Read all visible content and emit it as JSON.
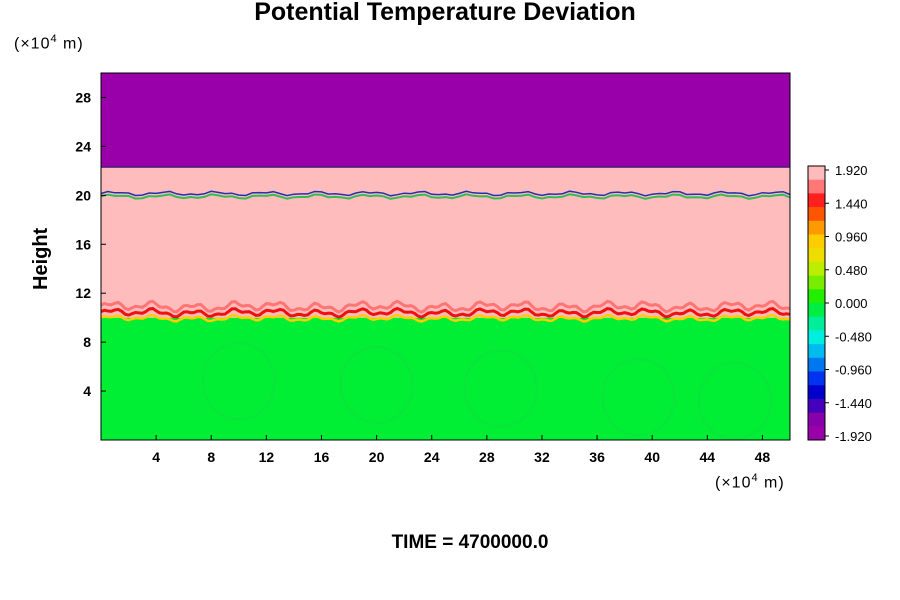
{
  "chart_data": {
    "type": "heatmap",
    "title": "Potential Temperature Deviation",
    "ylabel": "Height",
    "x_unit": {
      "prefix": "(×10",
      "exp": "4",
      "suffix": " m)"
    },
    "y_unit": {
      "prefix": "(×10",
      "exp": "4",
      "suffix": " m)"
    },
    "xlim": [
      0,
      50
    ],
    "ylim": [
      0,
      30
    ],
    "x_ticks": [
      "4",
      "8",
      "12",
      "16",
      "20",
      "24",
      "28",
      "32",
      "36",
      "40",
      "44",
      "48"
    ],
    "y_ticks": [
      "4",
      "8",
      "12",
      "16",
      "20",
      "24",
      "28"
    ],
    "layers": [
      {
        "from_height": 0,
        "to_height": 10,
        "value": 0.0,
        "color": "#00ee33"
      },
      {
        "from_height": 10,
        "to_height": 22.3,
        "value": 1.92,
        "color": "#ffbcbc"
      },
      {
        "from_height": 22.3,
        "to_height": 30,
        "value": -1.92,
        "color": "#9900aa"
      }
    ],
    "colorbar": {
      "labels": [
        "1.920",
        "1.440",
        "0.960",
        "0.480",
        "0.000",
        "-0.480",
        "-0.960",
        "-1.440",
        "-1.920"
      ],
      "colors": [
        "#ffbbbb",
        "#ff7777",
        "#ff2020",
        "#ff5500",
        "#ff9900",
        "#ffcc00",
        "#eedd00",
        "#bbee00",
        "#77ee00",
        "#22ee00",
        "#00ee44",
        "#00ee99",
        "#00eedd",
        "#00bbee",
        "#0077ee",
        "#0033ee",
        "#0000cc",
        "#4400bb",
        "#8800aa",
        "#9900aa"
      ]
    },
    "time_label": "TIME = 4700000.0"
  }
}
